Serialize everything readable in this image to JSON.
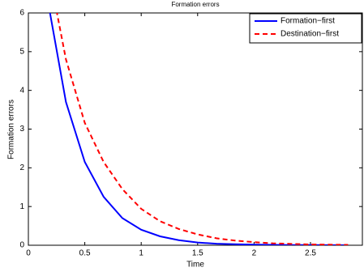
{
  "chart_data": {
    "type": "line",
    "title": "Formation errors",
    "x_label": "Time",
    "y_label": "Formation errors",
    "x": [
      0.167,
      0.333,
      0.5,
      0.667,
      0.833,
      1,
      1.167,
      1.333,
      1.5,
      1.667,
      1.833,
      2,
      2.167,
      2.333,
      2.5,
      2.667,
      2.833
    ],
    "series": [
      {
        "name": "Formation−first",
        "color": "#0000ff",
        "style": "solid",
        "values": [
          6.4,
          3.7,
          2.15,
          1.25,
          0.7,
          0.4,
          0.23,
          0.13,
          0.07,
          0.04,
          0.025,
          0.015,
          0.01,
          0.006,
          0.004,
          0.002,
          0.001
        ]
      },
      {
        "name": "Destination−first",
        "color": "#ff0000",
        "style": "dashed",
        "values": [
          7.3,
          4.8,
          3.16,
          2.15,
          1.45,
          0.94,
          0.62,
          0.42,
          0.28,
          0.18,
          0.12,
          0.08,
          0.05,
          0.035,
          0.02,
          0.015,
          0.01
        ]
      }
    ],
    "xlim": [
      0,
      2.96
    ],
    "ylim": [
      0,
      6
    ],
    "xticks": [
      0,
      0.5,
      1,
      1.5,
      2,
      2.5
    ],
    "yticks": [
      0,
      1,
      2,
      3,
      4,
      5,
      6
    ],
    "grid": false,
    "legend_position": "upper-right"
  }
}
